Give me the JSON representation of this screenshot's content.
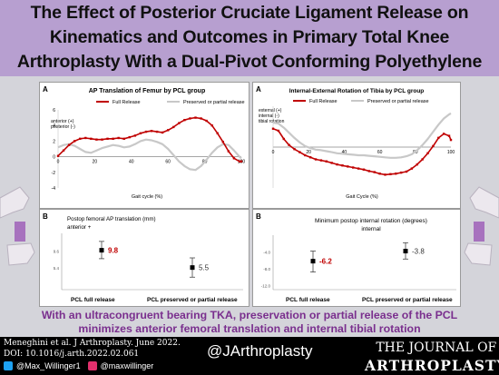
{
  "header": {
    "title_lines": [
      "The Effect of Posterior Cruciate Ligament Release on",
      "Kinematics and Outcomes in Primary Total Knee",
      "Arthroplasty With a Dual-Pivot Conforming Polyethylene"
    ]
  },
  "colors": {
    "title_bg": "#b79fd0",
    "full_release": "#c00000",
    "preserved": "#c8c8c8",
    "accent_purple": "#7a2f8e",
    "highlight_red": "#c00000"
  },
  "chart_data": [
    {
      "panel": "A",
      "type": "line",
      "title": "AP Translation of Femur by PCL group",
      "xlabel": "Gait cycle (%)",
      "ylabel_annotation": [
        "anterior (+)",
        "posterior (-)"
      ],
      "xlim": [
        0,
        100
      ],
      "ylim": [
        -4,
        6
      ],
      "yticks": [
        -4,
        -2,
        0,
        2,
        4,
        6
      ],
      "xticks": [
        0,
        20,
        40,
        60,
        80,
        100
      ],
      "legend_position": "top",
      "series": [
        {
          "name": "Full Release",
          "color": "#c00000",
          "x": [
            0,
            3,
            6,
            9,
            12,
            15,
            18,
            21,
            24,
            27,
            30,
            33,
            36,
            39,
            42,
            45,
            48,
            51,
            54,
            57,
            60,
            63,
            66,
            69,
            72,
            75,
            78,
            81,
            84,
            87,
            90,
            93,
            96,
            99,
            100
          ],
          "y": [
            0.1,
            0.8,
            1.5,
            2.0,
            2.3,
            2.4,
            2.3,
            2.2,
            2.2,
            2.3,
            2.3,
            2.4,
            2.3,
            2.5,
            2.7,
            3.0,
            3.2,
            3.3,
            3.2,
            3.1,
            3.4,
            3.8,
            4.3,
            4.7,
            4.9,
            5.0,
            4.9,
            4.6,
            4.0,
            3.0,
            1.9,
            0.7,
            -0.2,
            -0.6,
            -0.6
          ]
        },
        {
          "name": "Preserved or partial release",
          "color": "#c8c8c8",
          "x": [
            0,
            3,
            6,
            9,
            12,
            15,
            18,
            21,
            24,
            27,
            30,
            33,
            36,
            39,
            42,
            45,
            48,
            51,
            54,
            57,
            60,
            63,
            66,
            69,
            72,
            75,
            78,
            81,
            84,
            87,
            90,
            93,
            96,
            99,
            100
          ],
          "y": [
            1.2,
            1.5,
            1.6,
            1.4,
            1.0,
            0.6,
            0.5,
            0.8,
            1.1,
            1.3,
            1.5,
            1.4,
            1.2,
            1.3,
            1.6,
            2.0,
            2.2,
            2.1,
            1.9,
            1.6,
            1.0,
            0.2,
            -0.6,
            -1.2,
            -1.6,
            -1.7,
            -1.2,
            -0.4,
            0.5,
            1.2,
            1.6,
            1.5,
            0.8,
            0.0,
            -0.2
          ]
        }
      ]
    },
    {
      "panel": "A",
      "type": "line",
      "title": "Internal-External Rotation of Tibia by PCL group",
      "xlabel": "Gait Cycle (%)",
      "ylabel_annotation": [
        "external (+)",
        "internal (-)",
        "tibial rotation"
      ],
      "xlim": [
        0,
        100
      ],
      "ylim": [
        -8,
        8
      ],
      "xticks": [
        0,
        20,
        40,
        60,
        80,
        100
      ],
      "legend_position": "top",
      "series": [
        {
          "name": "Full Release",
          "color": "#c00000",
          "x": [
            0,
            3,
            6,
            9,
            12,
            15,
            18,
            21,
            24,
            27,
            30,
            33,
            36,
            39,
            42,
            45,
            48,
            51,
            54,
            57,
            60,
            63,
            66,
            69,
            72,
            75,
            78,
            81,
            84,
            87,
            90,
            93,
            96,
            99,
            100
          ],
          "y": [
            3.6,
            3.2,
            1.6,
            0.4,
            -0.4,
            -1.0,
            -1.6,
            -2.0,
            -2.4,
            -2.6,
            -2.8,
            -3.1,
            -3.4,
            -3.6,
            -3.8,
            -4.0,
            -4.2,
            -4.4,
            -4.7,
            -4.9,
            -5.2,
            -5.4,
            -5.3,
            -5.2,
            -5.0,
            -4.8,
            -4.2,
            -3.4,
            -2.4,
            -1.2,
            0.2,
            1.8,
            2.6,
            2.2,
            1.4
          ]
        },
        {
          "name": "Preserved or partial release",
          "color": "#c8c8c8",
          "x": [
            0,
            3,
            6,
            9,
            12,
            15,
            18,
            21,
            24,
            27,
            30,
            33,
            36,
            39,
            42,
            45,
            48,
            51,
            54,
            57,
            60,
            63,
            66,
            69,
            72,
            75,
            78,
            81,
            84,
            87,
            90,
            93,
            96,
            99,
            100
          ],
          "y": [
            4.8,
            4.6,
            3.8,
            2.8,
            1.8,
            0.9,
            0.2,
            -0.2,
            -0.5,
            -0.6,
            -0.8,
            -1.0,
            -1.2,
            -1.3,
            -1.4,
            -1.5,
            -1.6,
            -1.6,
            -1.7,
            -1.8,
            -1.9,
            -2.0,
            -2.1,
            -2.1,
            -2.0,
            -1.8,
            -1.4,
            -0.6,
            0.4,
            1.6,
            3.0,
            4.4,
            5.6,
            6.4,
            6.6
          ]
        }
      ]
    },
    {
      "panel": "B",
      "type": "scatter",
      "title": "Postop femoral AP translation (mm)",
      "direction_label": "anterior +",
      "yticks": [
        "9.6",
        "5.4"
      ],
      "ylim": [
        0,
        14
      ],
      "categories": [
        "PCL full release",
        "PCL preserved or partial release"
      ],
      "series": [
        {
          "values": [
            9.8,
            5.5
          ],
          "ci_low": [
            7.7,
            3.1
          ],
          "ci_high": [
            12.0,
            7.9
          ],
          "labels": [
            "9.8",
            "5.5"
          ],
          "label_colors": [
            "#c00000",
            "#333333"
          ]
        }
      ]
    },
    {
      "panel": "B",
      "type": "scatter",
      "title": "Minimum postop internal rotation (degrees)",
      "direction_label": "internal",
      "yticks": [
        "-4.0",
        "-8.0",
        "-12.0"
      ],
      "ylim": [
        -13,
        0
      ],
      "categories": [
        "PCL full release",
        "PCL preserved or partial release"
      ],
      "series": [
        {
          "values": [
            -6.2,
            -3.8
          ],
          "ci_low": [
            -8.8,
            -5.7
          ],
          "ci_high": [
            -3.8,
            -1.8
          ],
          "labels": [
            "-6.2",
            "-3.8"
          ],
          "label_colors": [
            "#c00000",
            "#333333"
          ]
        }
      ]
    }
  ],
  "conclusion": {
    "lines": [
      "With an ultracongruent bearing TKA, preservation or partial release of the PCL",
      "minimizes anterior femoral translation and internal tibial rotation"
    ]
  },
  "footer": {
    "citation_lines": [
      "Meneghini et al. J Arthroplasty. June 2022.",
      "DOI: 10.1016/j.arth.2022.02.061"
    ],
    "twitter": "@Max_Willinger1",
    "instagram": "@maxwillinger",
    "handle": "@JArthroplasty",
    "journal_top": "THE JOURNAL OF",
    "journal_bottom": "ARTHROPLASTY"
  }
}
